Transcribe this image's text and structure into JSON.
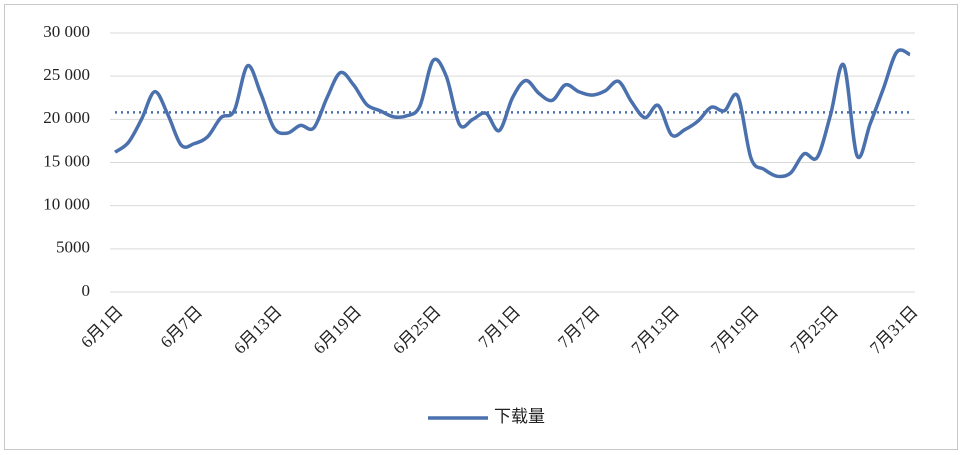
{
  "chart_data": {
    "type": "line",
    "categories": [
      "6月1日",
      null,
      null,
      null,
      null,
      null,
      "6月7日",
      null,
      null,
      null,
      null,
      null,
      "6月13日",
      null,
      null,
      null,
      null,
      null,
      "6月19日",
      null,
      null,
      null,
      null,
      null,
      "6月25日",
      null,
      null,
      null,
      null,
      null,
      "7月1日",
      null,
      null,
      null,
      null,
      null,
      "7月7日",
      null,
      null,
      null,
      null,
      null,
      "7月13日",
      null,
      null,
      null,
      null,
      null,
      "7月19日",
      null,
      null,
      null,
      null,
      null,
      "7月25日",
      null,
      null,
      null,
      null,
      null,
      "7月31日"
    ],
    "series": [
      {
        "name": "下载量",
        "color": "#4a71ad",
        "values": [
          16200,
          17300,
          20000,
          23200,
          20500,
          17000,
          17200,
          18000,
          20200,
          21000,
          26200,
          23000,
          19000,
          18400,
          19300,
          19000,
          22500,
          25400,
          24000,
          21700,
          21000,
          20300,
          20400,
          21500,
          26800,
          25000,
          19400,
          20000,
          20700,
          18700,
          22500,
          24500,
          23000,
          22200,
          24000,
          23200,
          22800,
          23300,
          24400,
          22000,
          20200,
          21600,
          18200,
          18800,
          19800,
          21400,
          21000,
          22700,
          15500,
          14200,
          13400,
          13800,
          16000,
          15600,
          20500,
          26300,
          15800,
          19500,
          23600,
          27800,
          27500
        ]
      }
    ],
    "average_line": 20800,
    "ylim": [
      0,
      30000
    ],
    "yticks": [
      0,
      5000,
      {
        "value": 10000,
        "label": "10 000"
      },
      {
        "value": 15000,
        "label": "15 000"
      },
      {
        "value": 20000,
        "label": "20 000"
      },
      {
        "value": 25000,
        "label": "25 000"
      },
      {
        "value": 30000,
        "label": "30 000"
      }
    ],
    "grid": true,
    "smooth": true,
    "legend": "bottom"
  }
}
